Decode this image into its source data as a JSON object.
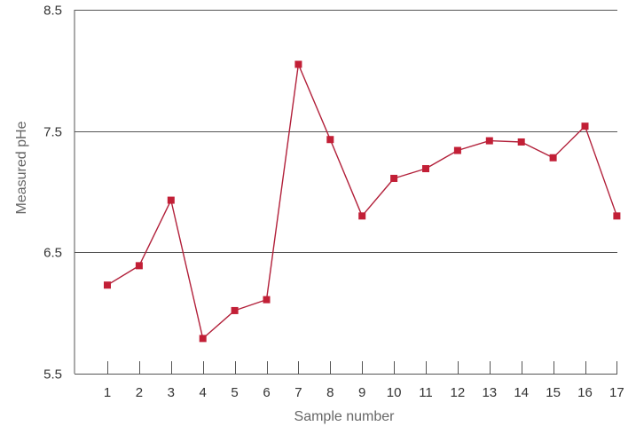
{
  "chart_data": {
    "type": "line",
    "title": "",
    "xlabel": "Sample number",
    "ylabel": "Measured pHe",
    "categories": [
      "1",
      "2",
      "3",
      "4",
      "5",
      "6",
      "7",
      "8",
      "9",
      "10",
      "11",
      "12",
      "13",
      "14",
      "15",
      "16",
      "17"
    ],
    "series": [
      {
        "values": [
          6.23,
          6.39,
          6.93,
          5.79,
          6.02,
          6.11,
          8.05,
          7.43,
          6.8,
          7.11,
          7.19,
          7.34,
          7.42,
          7.41,
          7.28,
          7.54,
          6.8
        ]
      }
    ],
    "ylim": [
      5.5,
      8.5
    ],
    "yticks": [
      "5.5",
      "6.5",
      "7.5",
      "8.5"
    ],
    "grid": "horizontal lines at major y ticks",
    "colors": {
      "line": "#b2203a",
      "marker": "#c21f36",
      "grid": "#555555",
      "axis": "#555555"
    }
  }
}
